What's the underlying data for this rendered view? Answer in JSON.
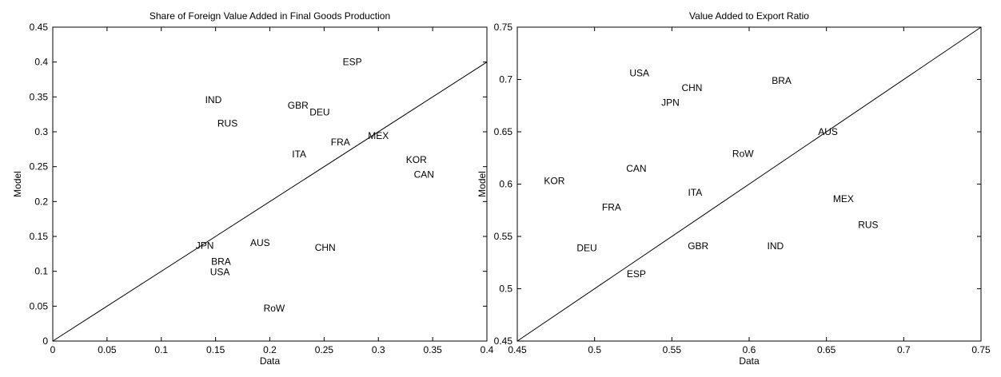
{
  "chart_data": [
    {
      "type": "scatter",
      "title": "Share of Foreign Value Added in Final Goods Production",
      "xlabel": "Data",
      "ylabel": "Model",
      "xlim": [
        0,
        0.4
      ],
      "ylim": [
        0,
        0.45
      ],
      "xticks": [
        "0",
        "0.05",
        "0.1",
        "0.15",
        "0.2",
        "0.25",
        "0.3",
        "0.35",
        "0.4"
      ],
      "yticks": [
        "0",
        "0.05",
        "0.1",
        "0.15",
        "0.2",
        "0.25",
        "0.3",
        "0.35",
        "0.4",
        "0.45"
      ],
      "reference_line": {
        "from": [
          0,
          0
        ],
        "to": [
          0.4,
          0.4
        ]
      },
      "grid": false,
      "points": [
        {
          "label": "ESP",
          "x": 0.276,
          "y": 0.4
        },
        {
          "label": "IND",
          "x": 0.148,
          "y": 0.346
        },
        {
          "label": "GBR",
          "x": 0.226,
          "y": 0.338
        },
        {
          "label": "DEU",
          "x": 0.246,
          "y": 0.328
        },
        {
          "label": "RUS",
          "x": 0.161,
          "y": 0.312
        },
        {
          "label": "MEX",
          "x": 0.3,
          "y": 0.294
        },
        {
          "label": "FRA",
          "x": 0.265,
          "y": 0.285
        },
        {
          "label": "ITA",
          "x": 0.227,
          "y": 0.268
        },
        {
          "label": "KOR",
          "x": 0.335,
          "y": 0.26
        },
        {
          "label": "CAN",
          "x": 0.342,
          "y": 0.239
        },
        {
          "label": "JPN",
          "x": 0.14,
          "y": 0.137
        },
        {
          "label": "AUS",
          "x": 0.191,
          "y": 0.141
        },
        {
          "label": "CHN",
          "x": 0.251,
          "y": 0.134
        },
        {
          "label": "BRA",
          "x": 0.155,
          "y": 0.114
        },
        {
          "label": "USA",
          "x": 0.154,
          "y": 0.099
        },
        {
          "label": "RoW",
          "x": 0.204,
          "y": 0.047
        }
      ]
    },
    {
      "type": "scatter",
      "title": "Value Added to Export Ratio",
      "xlabel": "Data",
      "ylabel": "Model",
      "xlim": [
        0.45,
        0.75
      ],
      "ylim": [
        0.45,
        0.75
      ],
      "xticks": [
        "0.45",
        "0.5",
        "0.55",
        "0.6",
        "0.65",
        "0.7",
        "0.75"
      ],
      "yticks": [
        "0.45",
        "0.5",
        "0.55",
        "0.6",
        "0.65",
        "0.7",
        "0.75"
      ],
      "reference_line": {
        "from": [
          0.45,
          0.45
        ],
        "to": [
          0.75,
          0.75
        ]
      },
      "grid": false,
      "points": [
        {
          "label": "USA",
          "x": 0.529,
          "y": 0.706
        },
        {
          "label": "BRA",
          "x": 0.621,
          "y": 0.699
        },
        {
          "label": "CHN",
          "x": 0.563,
          "y": 0.692
        },
        {
          "label": "JPN",
          "x": 0.549,
          "y": 0.678
        },
        {
          "label": "AUS",
          "x": 0.651,
          "y": 0.65
        },
        {
          "label": "RoW",
          "x": 0.596,
          "y": 0.629
        },
        {
          "label": "CAN",
          "x": 0.527,
          "y": 0.615
        },
        {
          "label": "KOR",
          "x": 0.474,
          "y": 0.603
        },
        {
          "label": "ITA",
          "x": 0.565,
          "y": 0.592
        },
        {
          "label": "MEX",
          "x": 0.661,
          "y": 0.586
        },
        {
          "label": "FRA",
          "x": 0.511,
          "y": 0.578
        },
        {
          "label": "RUS",
          "x": 0.677,
          "y": 0.561
        },
        {
          "label": "GBR",
          "x": 0.567,
          "y": 0.541
        },
        {
          "label": "IND",
          "x": 0.617,
          "y": 0.541
        },
        {
          "label": "DEU",
          "x": 0.495,
          "y": 0.539
        },
        {
          "label": "ESP",
          "x": 0.527,
          "y": 0.514
        }
      ]
    }
  ]
}
